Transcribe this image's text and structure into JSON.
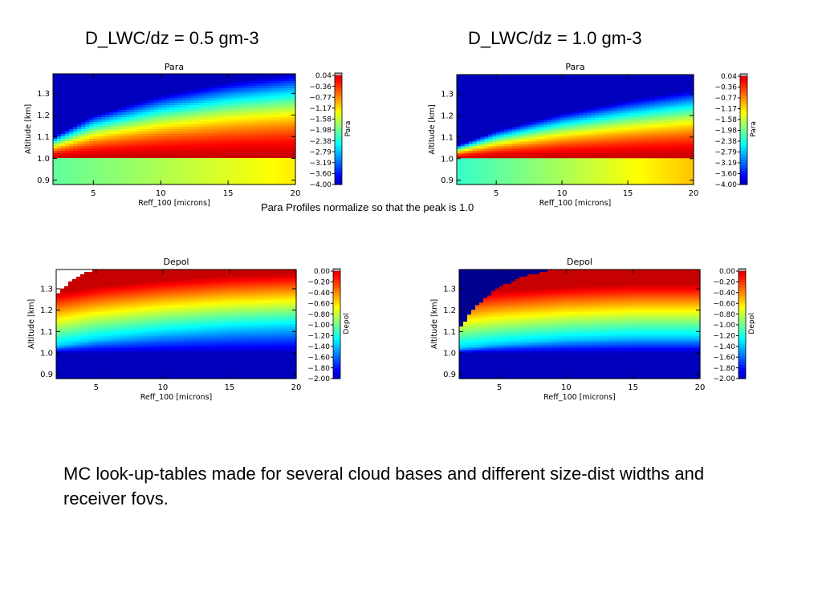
{
  "headings": {
    "left": "D_LWC/dz = 0.5 gm-3",
    "right": "D_LWC/dz = 1.0 gm-3"
  },
  "note": "Para Profiles normalize so that the peak is 1.0",
  "caption": "MC look-up-tables made for several cloud bases and different size-dist widths and receiver fovs.",
  "chart_data": [
    {
      "type": "heatmap",
      "title": "Para",
      "xlabel": "Reff_100 [microns]",
      "ylabel": "Altitude [km]",
      "xlim": [
        2,
        20
      ],
      "ylim": [
        0.88,
        1.39
      ],
      "xticks": [
        "5",
        "10",
        "15",
        "20"
      ],
      "yticks": [
        "0.9",
        "1.0",
        "1.1",
        "1.2",
        "1.3"
      ],
      "colorbar_label": "Para",
      "colorbar_ticks": [
        "0.04",
        "−0.36",
        "−0.77",
        "−1.17",
        "−1.58",
        "−1.98",
        "−2.38",
        "−2.79",
        "−3.19",
        "−3.60",
        "−4.00"
      ],
      "zlim": [
        -4.0,
        0.04
      ],
      "cloud_base_km": 1.0,
      "cloud_edge_km": [
        [
          2,
          1.1
        ],
        [
          5,
          1.2
        ],
        [
          10,
          1.29
        ],
        [
          15,
          1.35
        ],
        [
          20,
          1.39
        ]
      ],
      "below_base_value": [
        [
          2,
          -2.1
        ],
        [
          20,
          -1.3
        ]
      ]
    },
    {
      "type": "heatmap",
      "title": "Para",
      "xlabel": "Reff_100 [microns]",
      "ylabel": "Altitude [km]",
      "xlim": [
        2,
        20
      ],
      "ylim": [
        0.88,
        1.39
      ],
      "xticks": [
        "5",
        "10",
        "15",
        "20"
      ],
      "yticks": [
        "0.9",
        "1.0",
        "1.1",
        "1.2",
        "1.3"
      ],
      "colorbar_label": "Para",
      "colorbar_ticks": [
        "0.04",
        "−0.36",
        "−0.77",
        "−1.17",
        "−1.58",
        "−1.98",
        "−2.38",
        "−2.79",
        "−3.19",
        "−3.60",
        "−4.00"
      ],
      "zlim": [
        -4.0,
        0.04
      ],
      "cloud_base_km": 1.0,
      "cloud_edge_km": [
        [
          2,
          1.06
        ],
        [
          5,
          1.13
        ],
        [
          10,
          1.21
        ],
        [
          15,
          1.27
        ],
        [
          20,
          1.32
        ]
      ],
      "below_base_value": [
        [
          2,
          -2.3
        ],
        [
          20,
          -1.1
        ]
      ]
    },
    {
      "type": "heatmap",
      "title": "Depol",
      "xlabel": "Reff_100 [microns]",
      "ylabel": "Altitude [km]",
      "xlim": [
        2,
        20
      ],
      "ylim": [
        0.88,
        1.39
      ],
      "xticks": [
        "5",
        "10",
        "15",
        "20"
      ],
      "yticks": [
        "0.9",
        "1.0",
        "1.1",
        "1.2",
        "1.3"
      ],
      "colorbar_label": "Depol",
      "colorbar_ticks": [
        "0.00",
        "−0.20",
        "−0.40",
        "−0.60",
        "−0.80",
        "−1.00",
        "−1.20",
        "−1.40",
        "−1.60",
        "−1.80",
        "−2.00"
      ],
      "zlim": [
        -2.0,
        0.0
      ],
      "cloud_base_km": 1.0,
      "depol_low_edge_km": [
        [
          2,
          1.03
        ],
        [
          5,
          1.06
        ],
        [
          10,
          1.09
        ],
        [
          15,
          1.11
        ],
        [
          20,
          1.12
        ]
      ],
      "blank_region_edge_km": [
        [
          2,
          1.27
        ],
        [
          3,
          1.33
        ],
        [
          4,
          1.37
        ],
        [
          5,
          1.39
        ]
      ]
    },
    {
      "type": "heatmap",
      "title": "Depol",
      "xlabel": "Reff_100 [microns]",
      "ylabel": "Altitude [km]",
      "xlim": [
        2,
        20
      ],
      "ylim": [
        0.88,
        1.39
      ],
      "xticks": [
        "5",
        "10",
        "15",
        "20"
      ],
      "yticks": [
        "0.9",
        "1.0",
        "1.1",
        "1.2",
        "1.3"
      ],
      "colorbar_label": "Depol",
      "colorbar_ticks": [
        "0.00",
        "−0.20",
        "−0.40",
        "−0.60",
        "−0.80",
        "−1.00",
        "−1.20",
        "−1.40",
        "−1.60",
        "−1.80",
        "−2.00"
      ],
      "zlim": [
        -2.0,
        0.0
      ],
      "cloud_base_km": 1.0,
      "depol_low_edge_km": [
        [
          2,
          1.02
        ],
        [
          5,
          1.04
        ],
        [
          10,
          1.06
        ],
        [
          15,
          1.07
        ],
        [
          20,
          1.07
        ]
      ],
      "blank_region_edge_km": [
        [
          2,
          1.11
        ],
        [
          3,
          1.2
        ],
        [
          4,
          1.26
        ],
        [
          5,
          1.31
        ],
        [
          7,
          1.36
        ],
        [
          9,
          1.39
        ]
      ]
    }
  ]
}
